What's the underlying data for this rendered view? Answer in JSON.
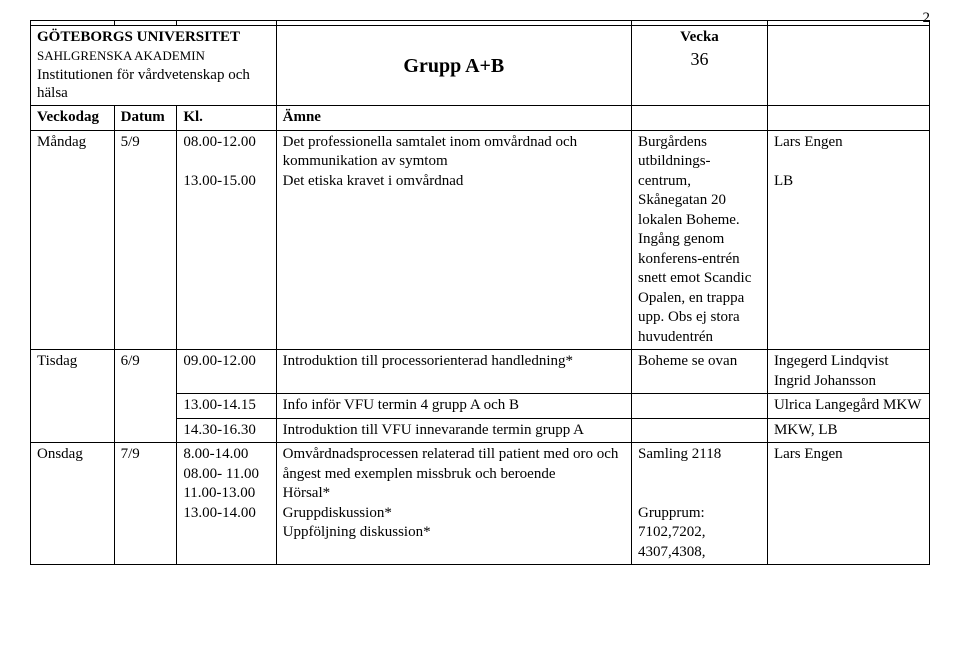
{
  "page_number": "2",
  "header": {
    "institution_line1": "GÖTEBORGS UNIVERSITET",
    "institution_line2": "SAHLGRENSKA AKADEMIN",
    "institution_line3": "Institutionen för vårdvetenskap och hälsa",
    "group_label": "Grupp A+B",
    "week_label": "Vecka",
    "week_number": "36",
    "col_day": "Veckodag",
    "col_date": "Datum",
    "col_time": "Kl.",
    "col_subject": "Ämne"
  },
  "rows": {
    "mandag": {
      "day": "Måndag",
      "date": "5/9",
      "time1": "08.00-12.00",
      "subj1": "Det professionella samtalet inom omvårdnad och kommunikation av symtom",
      "time2": "13.00-15.00",
      "subj2": "Det etiska kravet i omvårdnad",
      "loc1a": "Burgårdens utbildnings-centrum,",
      "loc1b": "Skånegatan 20 lokalen Boheme. Ingång genom konferens-entrén snett emot Scandic Opalen, en trappa upp. Obs ej stora huvudentrén",
      "pers1": "Lars Engen",
      "pers2": "LB"
    },
    "tisdag": {
      "day": "Tisdag",
      "date": "6/9",
      "time1": "09.00-12.00",
      "subj1": "Introduktion till processorienterad handledning*",
      "loc1": "Boheme se ovan",
      "pers1": "Ingegerd Lindqvist Ingrid Johansson",
      "time2": "13.00-14.15",
      "subj2": "Info inför VFU termin 4 grupp A och B",
      "pers2": "Ulrica Langegård MKW",
      "time3": "14.30-16.30",
      "subj3": "Introduktion till VFU innevarande termin grupp A",
      "pers3": "MKW, LB"
    },
    "onsdag": {
      "day": "Onsdag",
      "date": "7/9",
      "time1": "8.00-14.00",
      "subj1": "Omvårdnadsprocessen relaterad till patient med oro och ångest med exemplen missbruk och beroende",
      "time2": "08.00- 11.00",
      "subj2": "Hörsal*",
      "time3": "11.00-13.00",
      "subj3": "Gruppdiskussion*",
      "time4": "13.00-14.00",
      "subj4": "Uppföljning diskussion*",
      "loc1": "Samling 2118",
      "loc2": "Grupprum: 7102,7202, 4307,4308,",
      "pers1": "Lars Engen"
    }
  }
}
